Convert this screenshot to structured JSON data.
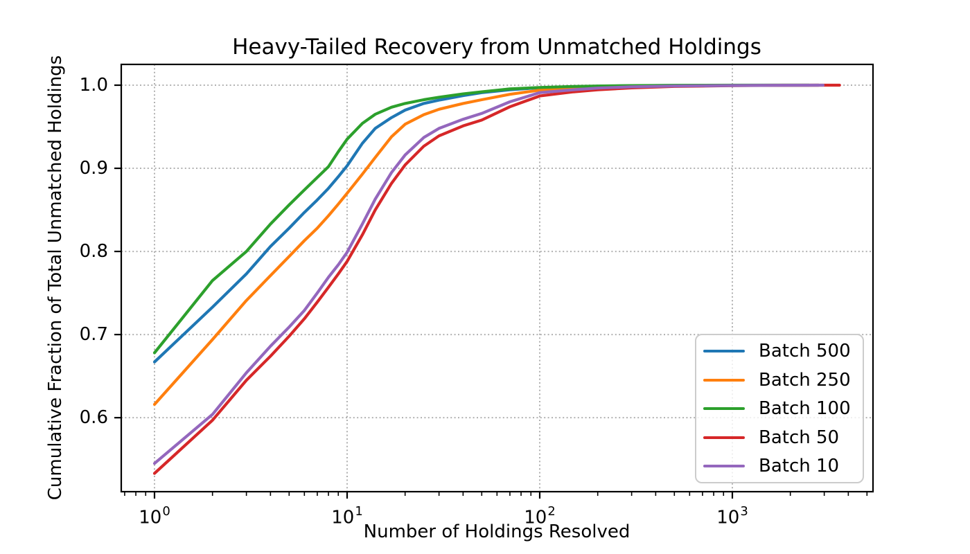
{
  "chart_data": {
    "type": "line",
    "title": "Heavy-Tailed Recovery from Unmatched Holdings",
    "xlabel": "Number of Holdings Resolved",
    "ylabel": "Cumulative Fraction of Total Unmatched Holdings",
    "x_scale": "log",
    "y_scale": "linear",
    "xlim": [
      0.672,
      5373
    ],
    "ylim": [
      0.511,
      1.025
    ],
    "grid": "dotted, both axes, major ticks only",
    "legend_position": "lower right",
    "x_ticks": [
      {
        "base": "10",
        "exp": "0",
        "value": 1
      },
      {
        "base": "10",
        "exp": "1",
        "value": 10
      },
      {
        "base": "10",
        "exp": "2",
        "value": 100
      },
      {
        "base": "10",
        "exp": "3",
        "value": 1000
      }
    ],
    "y_ticks": [
      {
        "label": "1.0",
        "value": 1.0
      },
      {
        "label": "0.9",
        "value": 0.9
      },
      {
        "label": "0.8",
        "value": 0.8
      },
      {
        "label": "0.7",
        "value": 0.7
      },
      {
        "label": "0.6",
        "value": 0.6
      }
    ],
    "series": [
      {
        "name": "Batch 500",
        "color": "#1f77b4",
        "x": [
          1,
          2,
          3,
          4,
          5,
          6,
          7,
          8,
          9,
          10,
          12,
          14,
          17,
          20,
          25,
          30,
          40,
          50,
          70,
          100,
          150,
          200,
          300,
          500,
          1000,
          2000,
          2800
        ],
        "y": [
          0.667,
          0.733,
          0.773,
          0.806,
          0.828,
          0.847,
          0.862,
          0.876,
          0.89,
          0.903,
          0.93,
          0.948,
          0.961,
          0.97,
          0.978,
          0.982,
          0.9875,
          0.991,
          0.9945,
          0.997,
          0.9982,
          0.9988,
          0.9993,
          0.9997,
          0.9999,
          1.0,
          1.0
        ]
      },
      {
        "name": "Batch 250",
        "color": "#ff7f0e",
        "x": [
          1,
          2,
          3,
          4,
          5,
          6,
          7,
          8,
          9,
          10,
          12,
          14,
          17,
          20,
          25,
          30,
          40,
          50,
          70,
          100,
          150,
          200,
          300,
          500,
          1000,
          2000,
          2800
        ],
        "y": [
          0.616,
          0.694,
          0.741,
          0.771,
          0.794,
          0.813,
          0.828,
          0.843,
          0.857,
          0.87,
          0.893,
          0.913,
          0.938,
          0.953,
          0.9645,
          0.971,
          0.978,
          0.9825,
          0.989,
          0.994,
          0.9966,
          0.9978,
          0.9987,
          0.9994,
          0.9998,
          1.0,
          1.0
        ]
      },
      {
        "name": "Batch 100",
        "color": "#2ca02c",
        "x": [
          1,
          2,
          3,
          4,
          5,
          6,
          7,
          8,
          9,
          10,
          12,
          14,
          17,
          20,
          25,
          30,
          40,
          50,
          70,
          100,
          150,
          200,
          300,
          500,
          1000,
          2000,
          2500
        ],
        "y": [
          0.678,
          0.765,
          0.8,
          0.833,
          0.856,
          0.874,
          0.889,
          0.902,
          0.92,
          0.935,
          0.954,
          0.965,
          0.9735,
          0.978,
          0.9825,
          0.9855,
          0.9895,
          0.992,
          0.9955,
          0.9973,
          0.9985,
          0.999,
          0.9995,
          0.9998,
          1.0,
          1.0,
          1.0
        ]
      },
      {
        "name": "Batch 50",
        "color": "#d62728",
        "x": [
          1,
          2,
          3,
          4,
          5,
          6,
          7,
          8,
          9,
          10,
          12,
          14,
          17,
          20,
          25,
          30,
          40,
          50,
          70,
          100,
          150,
          200,
          300,
          500,
          1000,
          2000,
          3000,
          3600
        ],
        "y": [
          0.533,
          0.597,
          0.645,
          0.674,
          0.698,
          0.719,
          0.739,
          0.757,
          0.773,
          0.788,
          0.82,
          0.85,
          0.882,
          0.904,
          0.9265,
          0.939,
          0.951,
          0.958,
          0.974,
          0.987,
          0.992,
          0.9945,
          0.9968,
          0.9985,
          0.9994,
          0.9998,
          1.0,
          1.0
        ]
      },
      {
        "name": "Batch 10",
        "color": "#9467bd",
        "x": [
          1,
          2,
          3,
          4,
          5,
          6,
          7,
          8,
          9,
          10,
          12,
          14,
          17,
          20,
          25,
          30,
          40,
          50,
          70,
          100,
          150,
          200,
          300,
          500,
          1000,
          2000,
          2960
        ],
        "y": [
          0.545,
          0.604,
          0.654,
          0.686,
          0.709,
          0.729,
          0.75,
          0.769,
          0.784,
          0.799,
          0.833,
          0.863,
          0.895,
          0.916,
          0.937,
          0.948,
          0.959,
          0.966,
          0.98,
          0.991,
          0.9945,
          0.9965,
          0.998,
          0.999,
          0.9996,
          0.9999,
          1.0
        ]
      }
    ],
    "style_colors": {
      "grid": "#b0b0b0",
      "spine": "#000000",
      "text": "#000000",
      "legend_edge": "#cccccc",
      "background": "#ffffff"
    }
  }
}
